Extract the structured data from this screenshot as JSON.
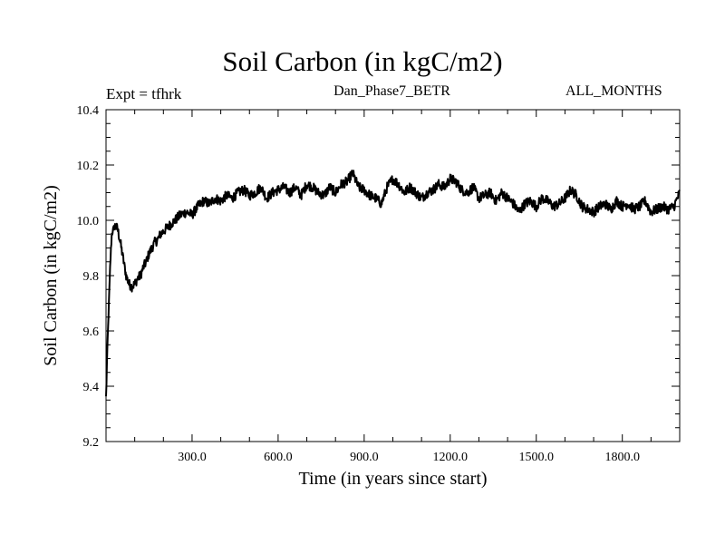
{
  "header": {
    "title": "Soil Carbon (in kgC/m2)",
    "expt_label": "Expt = tfhrk",
    "subtitle": "Dan_Phase7_BETR",
    "months_label": "ALL_MONTHS"
  },
  "chart_data": {
    "type": "line",
    "title": "Soil Carbon (in kgC/m2)",
    "xlabel": "Time (in years since start)",
    "ylabel": "Soil Carbon (in kgC/m2)",
    "xlim": [
      0,
      2000
    ],
    "ylim": [
      9.2,
      10.4
    ],
    "x_ticks": [
      300,
      600,
      900,
      1200,
      1500,
      1800
    ],
    "x_tick_labels": [
      "300.0",
      "600.0",
      "900.0",
      "1200.0",
      "1500.0",
      "1800.0"
    ],
    "y_ticks": [
      9.2,
      9.4,
      9.6,
      9.8,
      10.0,
      10.2,
      10.4
    ],
    "y_tick_labels": [
      "9.2",
      "9.4",
      "9.6",
      "9.8",
      "10.0",
      "10.2",
      "10.4"
    ],
    "series": [
      {
        "name": "Soil Carbon",
        "color": "#000000",
        "x": [
          0,
          5,
          10,
          15,
          20,
          30,
          40,
          50,
          60,
          70,
          80,
          90,
          100,
          110,
          120,
          130,
          140,
          150,
          160,
          170,
          180,
          190,
          200,
          220,
          240,
          260,
          280,
          300,
          320,
          340,
          360,
          380,
          400,
          420,
          440,
          460,
          480,
          500,
          520,
          540,
          560,
          580,
          600,
          620,
          640,
          660,
          680,
          700,
          720,
          740,
          760,
          780,
          800,
          820,
          840,
          860,
          880,
          900,
          920,
          940,
          960,
          980,
          1000,
          1020,
          1040,
          1060,
          1080,
          1100,
          1120,
          1140,
          1160,
          1180,
          1200,
          1220,
          1240,
          1260,
          1280,
          1300,
          1320,
          1340,
          1360,
          1380,
          1400,
          1420,
          1440,
          1460,
          1480,
          1500,
          1520,
          1540,
          1560,
          1580,
          1600,
          1620,
          1640,
          1660,
          1680,
          1700,
          1720,
          1740,
          1760,
          1780,
          1800,
          1820,
          1840,
          1860,
          1880,
          1900,
          1920,
          1940,
          1960,
          1980,
          2000
        ],
        "y": [
          9.36,
          9.55,
          9.7,
          9.85,
          9.95,
          9.98,
          9.97,
          9.92,
          9.86,
          9.8,
          9.77,
          9.76,
          9.77,
          9.79,
          9.8,
          9.83,
          9.85,
          9.88,
          9.9,
          9.92,
          9.93,
          9.95,
          9.96,
          9.98,
          10.0,
          10.02,
          10.03,
          10.02,
          10.05,
          10.07,
          10.06,
          10.08,
          10.07,
          10.09,
          10.08,
          10.1,
          10.11,
          10.09,
          10.1,
          10.12,
          10.08,
          10.1,
          10.11,
          10.12,
          10.1,
          10.12,
          10.09,
          10.13,
          10.12,
          10.1,
          10.09,
          10.12,
          10.1,
          10.13,
          10.14,
          10.17,
          10.12,
          10.11,
          10.09,
          10.08,
          10.06,
          10.12,
          10.15,
          10.13,
          10.1,
          10.12,
          10.1,
          10.08,
          10.1,
          10.11,
          10.13,
          10.12,
          10.15,
          10.14,
          10.11,
          10.1,
          10.12,
          10.08,
          10.09,
          10.1,
          10.07,
          10.1,
          10.08,
          10.06,
          10.03,
          10.06,
          10.07,
          10.05,
          10.08,
          10.07,
          10.05,
          10.06,
          10.08,
          10.11,
          10.09,
          10.05,
          10.04,
          10.03,
          10.05,
          10.06,
          10.04,
          10.07,
          10.05,
          10.06,
          10.04,
          10.05,
          10.07,
          10.03,
          10.04,
          10.05,
          10.04,
          10.05,
          10.1
        ]
      }
    ]
  }
}
